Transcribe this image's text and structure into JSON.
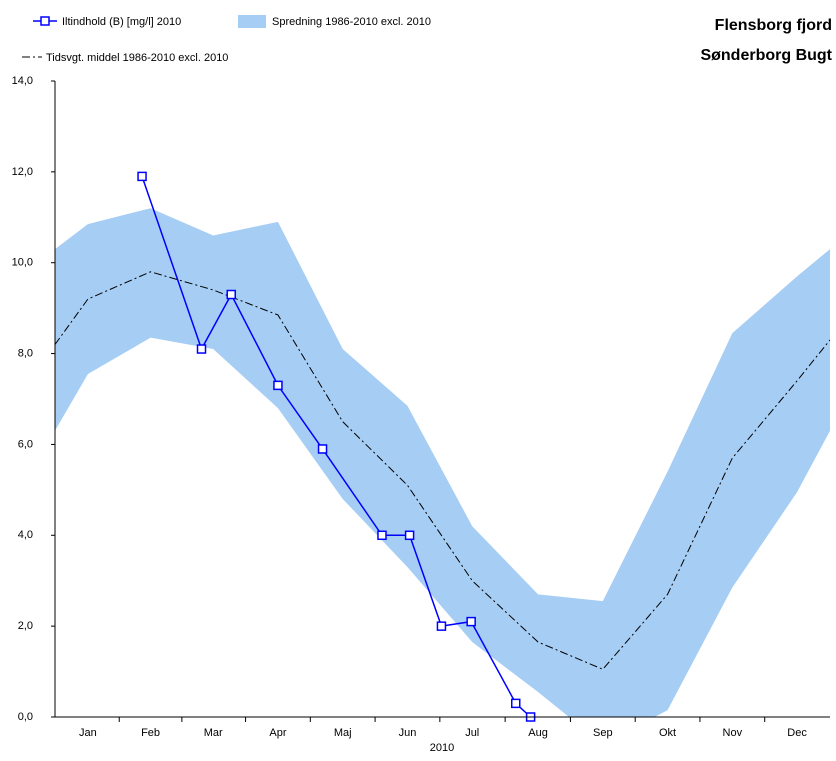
{
  "chart_data": {
    "type": "line",
    "title": "Flensborg fjord",
    "subtitle": "Sønderborg Bugt",
    "x_label": "2010",
    "xlim": [
      0,
      365
    ],
    "xticks": [
      {
        "value": 15.5,
        "label": "Jan"
      },
      {
        "value": 45,
        "label": "Feb"
      },
      {
        "value": 74.5,
        "label": "Mar"
      },
      {
        "value": 105,
        "label": "Apr"
      },
      {
        "value": 135.5,
        "label": "Maj"
      },
      {
        "value": 166,
        "label": "Jun"
      },
      {
        "value": 196.5,
        "label": "Jul"
      },
      {
        "value": 227.5,
        "label": "Aug"
      },
      {
        "value": 258,
        "label": "Sep"
      },
      {
        "value": 288.5,
        "label": "Okt"
      },
      {
        "value": 319,
        "label": "Nov"
      },
      {
        "value": 349.5,
        "label": "Dec"
      }
    ],
    "ylim": [
      0,
      14
    ],
    "yticks": [
      {
        "value": 0,
        "label": "0,0"
      },
      {
        "value": 2,
        "label": "2,0"
      },
      {
        "value": 4,
        "label": "4,0"
      },
      {
        "value": 6,
        "label": "6,0"
      },
      {
        "value": 8,
        "label": "8,0"
      },
      {
        "value": 10,
        "label": "10,0"
      },
      {
        "value": 12,
        "label": "12,0"
      },
      {
        "value": 14,
        "label": "14,0"
      }
    ],
    "band": {
      "name": "Spredning 1986-2010 excl. 2010",
      "color": "#a6cdf4",
      "x": [
        0,
        15.5,
        45,
        74.5,
        105,
        135.5,
        166,
        196.5,
        227.5,
        258,
        288.5,
        319,
        349.5,
        365
      ],
      "upper": [
        10.3,
        10.85,
        11.2,
        10.6,
        10.9,
        8.1,
        6.85,
        4.2,
        2.7,
        2.55,
        5.4,
        8.45,
        9.7,
        10.3
      ],
      "lower": [
        6.3,
        7.55,
        8.35,
        8.1,
        6.8,
        4.8,
        3.3,
        1.65,
        0.55,
        -0.6,
        0.15,
        2.85,
        4.95,
        6.3
      ]
    },
    "series": [
      {
        "name": "Iltindhold (B) [mg/l] 2010",
        "color": "#0000ff",
        "marker": "square",
        "x": [
          41,
          69,
          83,
          105,
          126,
          154,
          167,
          182,
          196,
          217,
          224
        ],
        "values": [
          11.9,
          8.1,
          9.3,
          7.3,
          5.9,
          4.0,
          4.0,
          2.0,
          2.1,
          0.3,
          0.0
        ]
      },
      {
        "name": "Tidsvgt. middel 1986-2010 excl. 2010",
        "color": "#000000",
        "dash": "8,3,2,3",
        "x": [
          0,
          15.5,
          45,
          74.5,
          105,
          135.5,
          166,
          196.5,
          227.5,
          258,
          288.5,
          319,
          349.5,
          365
        ],
        "values": [
          8.2,
          9.2,
          9.8,
          9.4,
          8.85,
          6.5,
          5.1,
          3.0,
          1.65,
          1.05,
          2.7,
          5.7,
          7.4,
          8.3
        ]
      }
    ]
  }
}
